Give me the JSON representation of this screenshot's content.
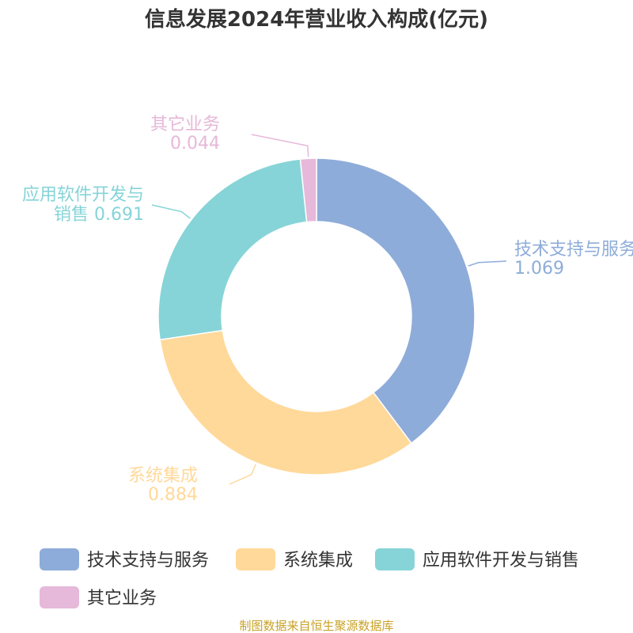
{
  "chart_data": {
    "type": "pie",
    "variant": "donut",
    "title": "信息发展2024年营业收入构成(亿元)",
    "slices": [
      {
        "name": "技术支持与服务",
        "value": 1.069,
        "value_label": "1.069",
        "color": "#8eacd9",
        "label_lines": [
          "技术支持与服务",
          "1.069"
        ]
      },
      {
        "name": "系统集成",
        "value": 0.884,
        "value_label": "0.884",
        "color": "#ffd99a",
        "label_lines": [
          "系统集成",
          "0.884"
        ]
      },
      {
        "name": "应用软件开发与销售",
        "value": 0.691,
        "value_label": "0.691",
        "color": "#86d4d8",
        "label_lines": [
          "应用软件开发与",
          "销售 0.691"
        ]
      },
      {
        "name": "其它业务",
        "value": 0.044,
        "value_label": "0.044",
        "color": "#e6b8d9",
        "label_lines": [
          "其它业务",
          "0.044"
        ]
      }
    ],
    "legend_position": "bottom"
  },
  "footer": {
    "source": "制图数据来自恒生聚源数据库"
  }
}
